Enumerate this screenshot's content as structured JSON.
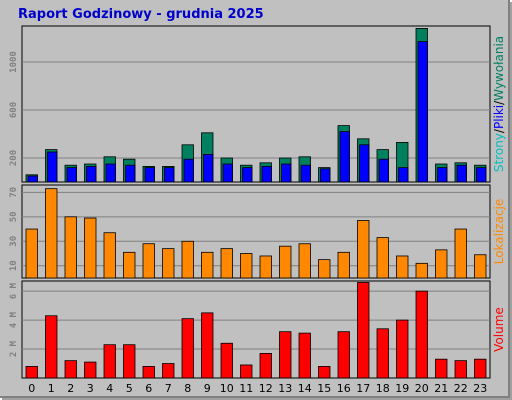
{
  "title": "Raport Godzinowy - grudnia 2025",
  "colors": {
    "pages": "#00805f",
    "files": "#0000ff",
    "hits": "#008080",
    "visits": "#ff8800",
    "volume": "#ff0000",
    "grid": "#808080",
    "panel": "#c0c0c0"
  },
  "ylabels": {
    "panel1": [
      {
        "text": "Strony",
        "color": "#00c0c0"
      },
      {
        "text": "/",
        "color": "#000000"
      },
      {
        "text": "Pliki",
        "color": "#0000ff"
      },
      {
        "text": "/",
        "color": "#000000"
      },
      {
        "text": "Wywołania",
        "color": "#008060"
      }
    ],
    "panel2": {
      "text": "Lokalizacje",
      "color": "#ff8800"
    },
    "panel3": {
      "text": "Volume",
      "color": "#ff0000"
    }
  },
  "chart_data": [
    {
      "type": "bar",
      "categories": [
        "0",
        "1",
        "2",
        "3",
        "4",
        "5",
        "6",
        "7",
        "8",
        "9",
        "10",
        "11",
        "12",
        "13",
        "14",
        "15",
        "16",
        "17",
        "18",
        "19",
        "20",
        "21",
        "22",
        "23"
      ],
      "series": [
        {
          "name": "Wywołania",
          "values": [
            60,
            270,
            140,
            150,
            210,
            190,
            130,
            130,
            310,
            410,
            200,
            140,
            160,
            200,
            210,
            120,
            470,
            360,
            270,
            330,
            1280,
            150,
            160,
            140
          ]
        },
        {
          "name": "Pliki",
          "values": [
            50,
            250,
            120,
            130,
            150,
            140,
            120,
            120,
            190,
            230,
            150,
            120,
            130,
            150,
            140,
            110,
            420,
            310,
            190,
            120,
            1170,
            120,
            140,
            120
          ]
        }
      ],
      "yticks": [
        200,
        600,
        1000
      ],
      "ylim": [
        0,
        1300
      ]
    },
    {
      "type": "bar",
      "categories": [
        "0",
        "1",
        "2",
        "3",
        "4",
        "5",
        "6",
        "7",
        "8",
        "9",
        "10",
        "11",
        "12",
        "13",
        "14",
        "15",
        "16",
        "17",
        "18",
        "19",
        "20",
        "21",
        "22",
        "23"
      ],
      "series": [
        {
          "name": "Lokalizacje",
          "values": [
            40,
            73,
            50,
            49,
            37,
            21,
            28,
            24,
            30,
            21,
            24,
            20,
            18,
            26,
            28,
            15,
            21,
            47,
            33,
            18,
            12,
            23,
            40,
            19
          ]
        }
      ],
      "yticks": [
        10,
        30,
        50,
        70
      ],
      "ylim": [
        0,
        76
      ]
    },
    {
      "type": "bar",
      "categories": [
        "0",
        "1",
        "2",
        "3",
        "4",
        "5",
        "6",
        "7",
        "8",
        "9",
        "10",
        "11",
        "12",
        "13",
        "14",
        "15",
        "16",
        "17",
        "18",
        "19",
        "20",
        "21",
        "22",
        "23"
      ],
      "series": [
        {
          "name": "Volume",
          "values": [
            0.8,
            4.3,
            1.2,
            1.1,
            2.3,
            2.3,
            0.8,
            1.0,
            4.1,
            4.5,
            2.4,
            0.9,
            1.7,
            3.2,
            3.1,
            0.8,
            3.2,
            6.6,
            3.4,
            4.0,
            6.0,
            1.3,
            1.2,
            1.3
          ]
        }
      ],
      "yticks": [
        "2 M",
        "4 M",
        "6 M"
      ],
      "ytick_values": [
        2,
        4,
        6
      ],
      "ylim": [
        0,
        6.7
      ]
    }
  ]
}
